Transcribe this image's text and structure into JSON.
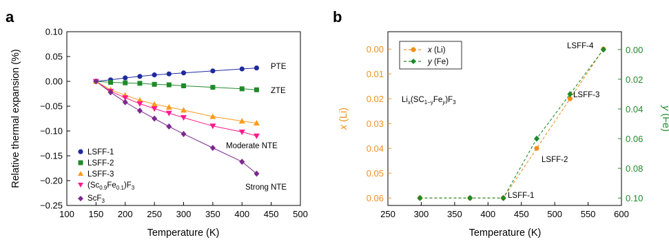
{
  "panels": {
    "a": {
      "label": "a"
    },
    "b": {
      "label": "b"
    }
  },
  "colors": {
    "lsff1": "#1f2a9e",
    "lsff2": "#1f8a2a",
    "lsff3": "#ff9a1c",
    "scfe": "#ff1a8c",
    "scf3": "#7b2a8e",
    "orange": "#f0901e",
    "green": "#1d8a2a"
  },
  "chart_data": [
    {
      "type": "line",
      "panel": "a",
      "xlabel": "Temperature (K)",
      "ylabel": "Relative thermal expansion (%)",
      "xlim": [
        100,
        500
      ],
      "ylim": [
        -0.25,
        0.1
      ],
      "xticks": [
        "100",
        "150",
        "200",
        "250",
        "300",
        "350",
        "400",
        "450",
        "500"
      ],
      "yticks": [
        "0.10",
        "0.05",
        "0.00",
        "−0.05",
        "−0.10",
        "−0.15",
        "−0.20",
        "−0.25"
      ],
      "series": [
        {
          "name": "LSFF-1",
          "marker": "circle",
          "color": "#1f2a9e",
          "x": [
            150,
            175,
            200,
            225,
            250,
            275,
            300,
            350,
            400,
            425
          ],
          "y": [
            0,
            0.003,
            0.007,
            0.01,
            0.013,
            0.015,
            0.017,
            0.021,
            0.025,
            0.027
          ]
        },
        {
          "name": "LSFF-2",
          "marker": "square",
          "color": "#1f8a2a",
          "x": [
            150,
            175,
            200,
            225,
            250,
            275,
            300,
            350,
            400,
            425
          ],
          "y": [
            0,
            -0.002,
            -0.003,
            -0.004,
            -0.006,
            -0.007,
            -0.009,
            -0.012,
            -0.015,
            -0.017
          ]
        },
        {
          "name": "LSFF-3",
          "marker": "triangle-up",
          "color": "#ff9a1c",
          "x": [
            150,
            175,
            200,
            225,
            250,
            275,
            300,
            350,
            400,
            425
          ],
          "y": [
            0,
            -0.017,
            -0.028,
            -0.038,
            -0.046,
            -0.052,
            -0.058,
            -0.071,
            -0.08,
            -0.084
          ]
        },
        {
          "name": "(Sc0.9Fe0.1)F3",
          "marker": "triangle-down",
          "color": "#ff1a8c",
          "x": [
            150,
            175,
            200,
            225,
            250,
            275,
            300,
            350,
            400,
            425
          ],
          "y": [
            0,
            -0.02,
            -0.033,
            -0.045,
            -0.055,
            -0.064,
            -0.073,
            -0.09,
            -0.102,
            -0.11
          ]
        },
        {
          "name": "ScF3",
          "marker": "diamond",
          "color": "#7b2a8e",
          "x": [
            150,
            175,
            200,
            225,
            250,
            275,
            300,
            350,
            400,
            425
          ],
          "y": [
            0,
            -0.022,
            -0.042,
            -0.059,
            -0.075,
            -0.091,
            -0.106,
            -0.134,
            -0.162,
            -0.186
          ]
        }
      ],
      "annotations": [
        "PTE",
        "ZTE",
        "Moderate NTE",
        "Strong NTE"
      ],
      "legend": {
        "position": "bottom-left",
        "items": [
          {
            "text": "LSFF-1"
          },
          {
            "text": "LSFF-2"
          },
          {
            "text": "LSFF-3"
          },
          {
            "pre": "(Sc",
            "sub1": "0.9",
            "mid": "Fe",
            "sub2": "0.1",
            "post": ")F",
            "sub3": "3"
          },
          {
            "pre": "ScF",
            "sub1": "3"
          }
        ]
      }
    },
    {
      "type": "line",
      "panel": "b",
      "xlabel": "Temperature (K)",
      "ylabel_left": "x (Li)",
      "ylabel_right": "y (Fe)",
      "xlim": [
        250,
        600
      ],
      "ylim_left": [
        0.063,
        -0.007
      ],
      "ylim_right": [
        0.105,
        -0.012
      ],
      "xticks": [
        "250",
        "300",
        "350",
        "400",
        "450",
        "500",
        "550",
        "600"
      ],
      "yticks_left": [
        "0.00",
        "0.01",
        "0.02",
        "0.03",
        "0.04",
        "0.05",
        "0.06"
      ],
      "yticks_right": [
        "0.00",
        "0.02",
        "0.04",
        "0.06",
        "0.08",
        "0.10"
      ],
      "series": [
        {
          "name": "x (Li)",
          "axis": "left",
          "marker": "circle",
          "color": "#f0901e",
          "x": [
            298,
            373,
            423,
            473,
            523,
            573
          ],
          "y": [
            0.06,
            0.06,
            0.06,
            0.04,
            0.02,
            0.0
          ]
        },
        {
          "name": "y (Fe)",
          "axis": "right",
          "marker": "diamond",
          "color": "#1d8a2a",
          "x": [
            298,
            373,
            423,
            473,
            523,
            573
          ],
          "y": [
            0.1,
            0.1,
            0.1,
            0.06,
            0.03,
            0.0
          ]
        }
      ],
      "point_labels": [
        "LSFF-1",
        "LSFF-2",
        "LSFF-3",
        "LSFF-4"
      ],
      "formula": {
        "p1": "Li",
        "s1": "x",
        "p2": "(SC",
        "s2": "1−y",
        "p3": "Fe",
        "s3": "y",
        "p4": ")F",
        "s4": "3"
      },
      "legend": {
        "position": "top-left",
        "items": [
          {
            "var": "x",
            "rest": " (Li)"
          },
          {
            "var": "y",
            "rest": " (Fe)"
          }
        ]
      }
    }
  ]
}
